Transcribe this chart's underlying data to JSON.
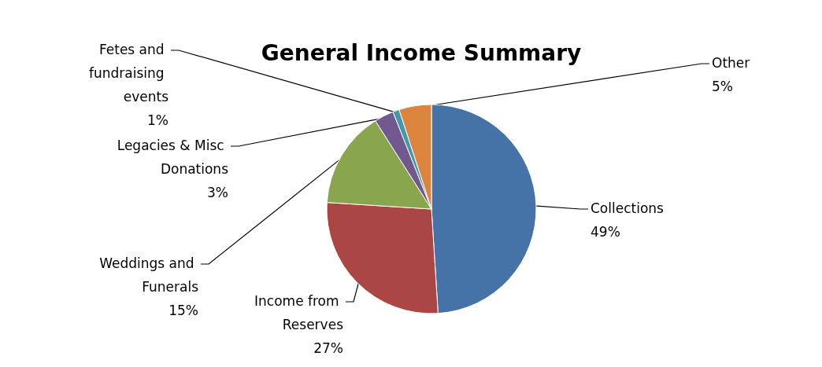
{
  "chart_data": {
    "type": "pie",
    "title": "General Income Summary",
    "categories": [
      "Collections",
      "Income from Reserves",
      "Weddings and Funerals",
      "Legacies & Misc Donations",
      "Fetes and fundraising events",
      "Other"
    ],
    "values": [
      49,
      27,
      15,
      3,
      1,
      5
    ],
    "colors": [
      "#4572a7",
      "#aa4643",
      "#89a54e",
      "#71588f",
      "#4198af",
      "#db843d"
    ],
    "value_labels": [
      "49%",
      "27%",
      "15%",
      "3%",
      "1%",
      "5%"
    ],
    "legend": false
  }
}
